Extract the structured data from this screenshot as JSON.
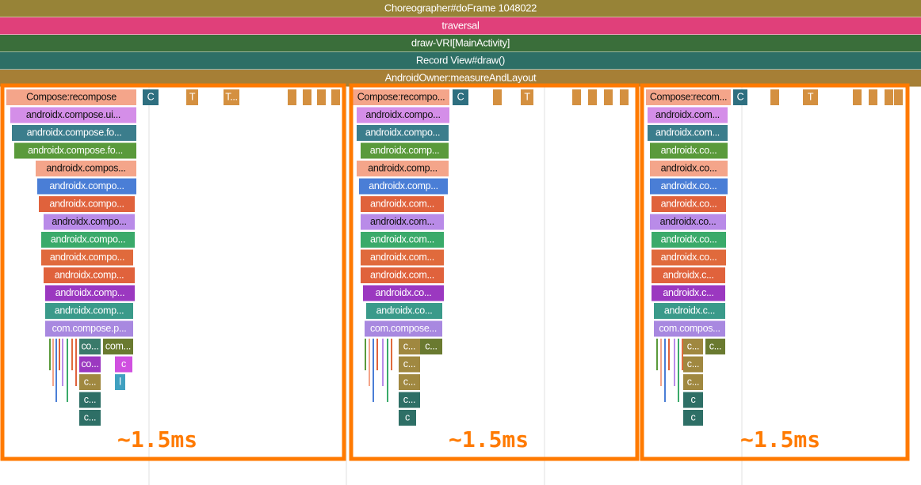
{
  "header_slices": [
    "Choreographer#doFrame 1048022",
    "traversal",
    "draw-VRI[MainActivity]",
    "Record View#draw()",
    "AndroidOwner:measureAndLayout"
  ],
  "panels": [
    {
      "slices": [
        "Compose:recompose",
        "androidx.compose.ui...",
        "androidx.compose.fo...",
        "androidx.compose.fo...",
        "androidx.compos...",
        "androidx.compo...",
        "androidx.compo...",
        "androidx.compo...",
        "androidx.compo...",
        "androidx.compo...",
        "androidx.comp...",
        "androidx.comp...",
        "androidx.comp...",
        "com.compose.p..."
      ],
      "small": [
        "co...",
        "com...",
        "co...",
        "c",
        "c...",
        "l",
        "c...",
        "c..."
      ],
      "top": [
        "C",
        "T",
        "T..."
      ],
      "annotation": "~1.5ms"
    },
    {
      "slices": [
        "Compose:recompo...",
        "androidx.compo...",
        "androidx.compo...",
        "androidx.comp...",
        "androidx.comp...",
        "androidx.comp...",
        "androidx.com...",
        "androidx.com...",
        "androidx.com...",
        "androidx.com...",
        "androidx.com...",
        "androidx.co...",
        "androidx.co...",
        "com.compose..."
      ],
      "small": [
        "c...",
        "c...",
        "c...",
        "c...",
        "c...",
        "c"
      ],
      "top": [
        "C",
        "T"
      ],
      "annotation": "~1.5ms"
    },
    {
      "slices": [
        "Compose:recom...",
        "androidx.com...",
        "androidx.com...",
        "androidx.co...",
        "androidx.co...",
        "androidx.co...",
        "androidx.co...",
        "androidx.co...",
        "androidx.co...",
        "androidx.co...",
        "androidx.c...",
        "androidx.c...",
        "androidx.c...",
        "com.compos..."
      ],
      "small": [
        "c...",
        "c...",
        "c...",
        "c...",
        "c",
        "c"
      ],
      "top": [
        "C",
        "T"
      ],
      "annotation": "~1.5ms"
    }
  ]
}
